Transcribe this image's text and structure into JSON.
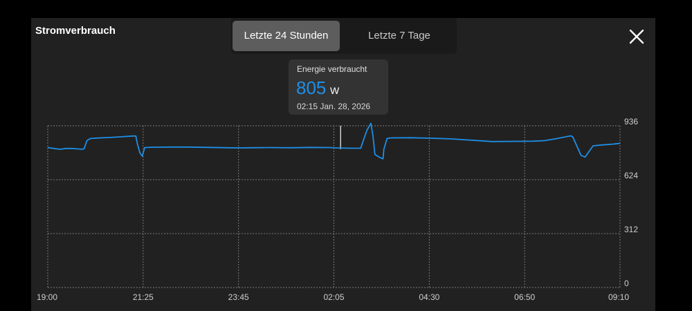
{
  "header": {
    "title": "Stromverbrauch",
    "tabs": [
      "Letzte 24 Stunden",
      "Letzte 7 Tage"
    ],
    "active_tab": 0
  },
  "tooltip": {
    "label": "Energie verbraucht",
    "value": "805",
    "unit": "W",
    "time": "02:15  Jan. 28, 2026"
  },
  "colors": {
    "line": "#1e8fe6",
    "panel": "#212121",
    "grid": "#7a7a7a"
  },
  "chart_data": {
    "type": "line",
    "title": "",
    "xlabel": "",
    "ylabel": "",
    "x_ticks": [
      "19:00",
      "21:25",
      "23:45",
      "02:05",
      "04:30",
      "06:50",
      "09:10"
    ],
    "y_ticks": [
      "0",
      "312",
      "624",
      "936"
    ],
    "ylim": [
      0,
      936
    ],
    "y_axis_position": "right",
    "grid": true,
    "x_range_hours": [
      0,
      14.1667
    ],
    "series": [
      {
        "x": [
          0,
          0.15,
          0.3,
          0.45,
          0.6,
          0.75,
          0.85,
          0.9,
          0.97,
          1.05,
          1.2,
          1.5,
          1.8,
          2.1,
          2.18,
          2.22,
          2.28,
          2.34,
          2.4,
          2.6,
          3.0,
          3.5,
          4.0,
          4.5,
          4.8,
          5.0,
          5.5,
          6.0,
          6.5,
          7.0,
          7.1,
          7.5,
          7.75,
          7.78,
          7.9,
          8.0,
          8.05,
          8.1,
          8.2,
          8.3,
          8.32,
          8.4,
          8.5,
          9.0,
          9.5,
          10.0,
          11.0,
          12.0,
          12.3,
          12.6,
          12.95,
          13.0,
          13.2,
          13.3,
          13.5,
          13.7,
          14.0,
          14.1667
        ],
        "values": [
          810,
          805,
          800,
          805,
          805,
          802,
          800,
          803,
          850,
          862,
          865,
          868,
          872,
          877,
          877,
          830,
          780,
          760,
          810,
          812,
          813,
          813,
          811,
          809,
          808,
          809,
          810,
          809,
          811,
          810,
          808,
          806,
          806,
          830,
          910,
          950,
          880,
          770,
          755,
          745,
          800,
          863,
          866,
          867,
          864,
          860,
          845,
          847,
          850,
          862,
          878,
          870,
          765,
          755,
          820,
          825,
          830,
          835
        ]
      }
    ],
    "cursor": {
      "x": 7.25,
      "value": 805
    }
  }
}
